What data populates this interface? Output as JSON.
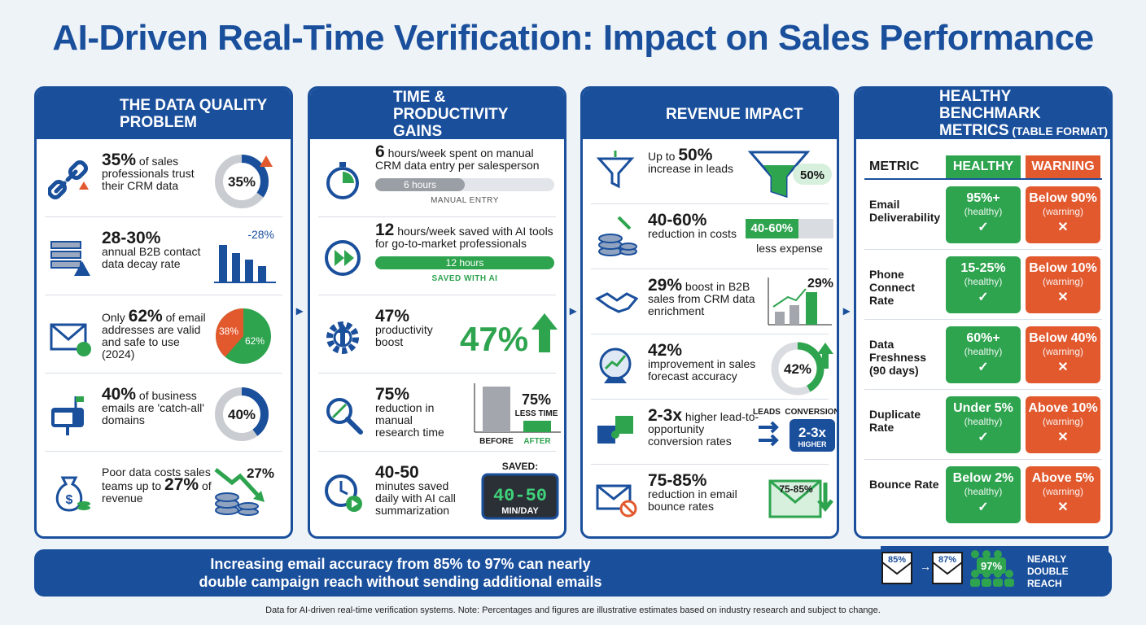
{
  "title": "AI-Driven Real-Time Verification: Impact on Sales Performance",
  "colors": {
    "primary": "#1a4f9c",
    "green": "#2ea44f",
    "red": "#e2592e",
    "gray": "#c9ccd1"
  },
  "panels": {
    "quality": {
      "title1": "THE DATA QUALITY",
      "title2": "PROBLEM",
      "icon": "warning-database-icon",
      "rows": [
        {
          "icon": "broken-link-icon",
          "big": "35%",
          "text": " of sales professionals trust their CRM data",
          "viz_label": "35%",
          "percent": 35
        },
        {
          "icon": "decaying-records-icon",
          "big": "28-30%",
          "text": "annual B2B contact data decay rate",
          "viz_label": "-28%"
        },
        {
          "icon": "email-check-icon",
          "pre": "Only ",
          "big": "62%",
          "text": " of email addresses are valid and safe to use (2024)",
          "slice_a": "38%",
          "slice_b": "62%"
        },
        {
          "icon": "mailbox-icon",
          "big": "40%",
          "text": " of business emails are 'catch-all' domains",
          "viz_label": "40%",
          "percent": 40
        },
        {
          "icon": "money-bag-icon",
          "pre": "Poor data costs sales teams up to ",
          "big": "27%",
          "text": " of revenue",
          "viz_label": "27%"
        }
      ]
    },
    "time": {
      "title1": "TIME & PRODUCTIVITY",
      "title2": "GAINS",
      "icon": "clock-growth-icon",
      "rows": [
        {
          "icon": "stopwatch-icon",
          "big": "6",
          "text": " hours/week spent on manual CRM data entry per salesperson",
          "bar_label": "6 hours",
          "caption": "MANUAL ENTRY",
          "fraction": 0.5
        },
        {
          "icon": "fast-forward-icon",
          "big": "12",
          "text": " hours/week saved with AI tools for go-to-market professionals",
          "bar_label": "12 hours",
          "caption": "SAVED WITH AI",
          "fraction": 1.0
        },
        {
          "icon": "gear-up-icon",
          "big": "47%",
          "text": "productivity boost",
          "viz_label": "47%"
        },
        {
          "icon": "magnifier-icon",
          "big": "75%",
          "text": "reduction in manual research time",
          "viz_label": "75%",
          "viz_sub": "LESS TIME",
          "before": "BEFORE",
          "after": "AFTER"
        },
        {
          "icon": "clock-play-icon",
          "big": "40-50",
          "text": "minutes saved daily with AI call summarization",
          "saved": "SAVED:",
          "display": "40-50",
          "unit": "MIN/DAY"
        }
      ]
    },
    "revenue": {
      "title1": "REVENUE IMPACT",
      "title2": "",
      "icon": "growth-chart-dollar-icon",
      "rows": [
        {
          "icon": "funnel-icon",
          "pre": "Up to ",
          "big": "50%",
          "text": "increase in leads",
          "viz_label": "50%"
        },
        {
          "icon": "coins-down-icon",
          "big": "40-60%",
          "text": "reduction in costs",
          "viz_label": "40-60%",
          "viz_sub": "less expense"
        },
        {
          "icon": "handshake-icon",
          "big": "29%",
          "text": " boost in B2B sales from CRM data enrichment",
          "viz_label": "29%"
        },
        {
          "icon": "crystal-ball-icon",
          "big": "42%",
          "text": "improvement in sales forecast accuracy",
          "viz_label": "42%",
          "percent": 42
        },
        {
          "icon": "puzzle-icon",
          "big": "2-3x",
          "text": " higher lead-to-opportunity conversion rates",
          "leads": "LEADS",
          "conversion": "CONVERSION",
          "box": "2-3x",
          "box_sub": "HIGHER"
        },
        {
          "icon": "email-blocked-icon",
          "big": "75-85%",
          "text": "reduction in email bounce rates",
          "viz_label": "75-85%"
        }
      ]
    },
    "bench": {
      "title1": "HEALTHY BENCHMARK",
      "title2": "METRICS",
      "title2_small": " (TABLE FORMAT)",
      "icon": "spreadsheet-icon",
      "headers": {
        "metric": "METRIC",
        "healthy": "HEALTHY",
        "warning": "WARNING"
      },
      "rows": [
        {
          "metric": "Email Deliverability",
          "healthy": "95%+",
          "healthy_sub": "(healthy)",
          "warning": "Below 90%",
          "warning_sub": "(warning)"
        },
        {
          "metric": "Phone Connect Rate",
          "healthy": "15-25%",
          "healthy_sub": "(healthy)",
          "warning": "Below 10%",
          "warning_sub": "(warning)"
        },
        {
          "metric": "Data Freshness (90 days)",
          "healthy": "60%+",
          "healthy_sub": "(healthy)",
          "warning": "Below 40%",
          "warning_sub": "(warning)"
        },
        {
          "metric": "Duplicate Rate",
          "healthy": "Under 5%",
          "healthy_sub": "(healthy)",
          "warning": "Above 10%",
          "warning_sub": "(warning)"
        },
        {
          "metric": "Bounce Rate",
          "healthy": "Below 2%",
          "healthy_sub": "(healthy)",
          "warning": "Above 5%",
          "warning_sub": "(warning)"
        }
      ]
    }
  },
  "footer": {
    "line1": "Increasing email accuracy from 85% to 97% can nearly",
    "line2": "double campaign reach without sending additional emails",
    "env1": "85%",
    "env2": "87%",
    "badge": "97%",
    "reach1": "NEARLY",
    "reach2": "DOUBLE",
    "reach3": "REACH"
  },
  "note": "Data for AI-driven real-time verification systems. Note: Percentages and figures are illustrative estimates based on industry research and subject to change."
}
